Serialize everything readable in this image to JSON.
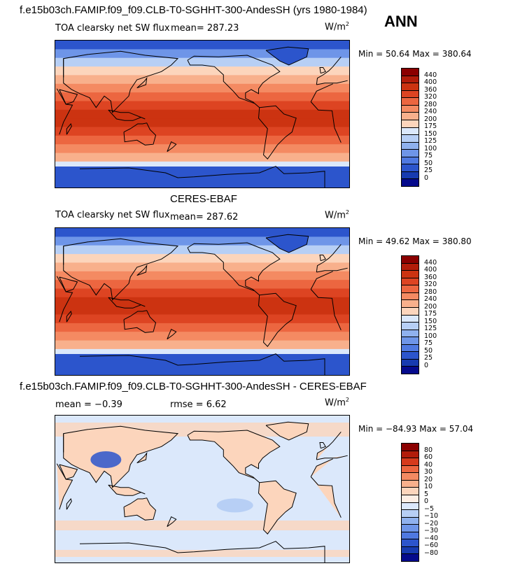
{
  "season": "ANN",
  "units": "W/m",
  "units_sup": "2",
  "panels": [
    {
      "title": "f.e15b03ch.FAMIP.f09_f09.CLB-T0-SGHHT-300-AndesSH (yrs 1980-1984)",
      "variable": "TOA clearsky net SW flux",
      "mean_label": "mean=",
      "mean": "287.23",
      "min_label": "Min =",
      "min": "50.64",
      "max_label": "Max =",
      "max": "380.64",
      "kind": "abs"
    },
    {
      "title": "CERES-EBAF",
      "variable": "TOA clearsky net SW flux",
      "mean_label": "mean=",
      "mean": "287.62",
      "min_label": "Min =",
      "min": "49.62",
      "max_label": "Max =",
      "max": "380.80",
      "kind": "abs"
    },
    {
      "title": "f.e15b03ch.FAMIP.f09_f09.CLB-T0-SGHHT-300-AndesSH - CERES-EBAF",
      "mean_label": "mean =",
      "mean": "−0.39",
      "rmse_label": "rmse =",
      "rmse": "6.62",
      "min_label": "Min =",
      "min": "−84.93",
      "max_label": "Max =",
      "max": "57.04",
      "kind": "diff"
    }
  ],
  "colorbars": {
    "abs": {
      "labels": [
        "440",
        "400",
        "360",
        "320",
        "280",
        "240",
        "200",
        "175",
        "150",
        "125",
        "100",
        "75",
        "50",
        "25",
        "0"
      ],
      "colors": [
        "#8b0000",
        "#b21c0a",
        "#cc3311",
        "#dd4422",
        "#ec6640",
        "#f48a62",
        "#f8b08c",
        "#fcd5bc",
        "#dbe8fb",
        "#b7cff5",
        "#8fb1ee",
        "#6e95e8",
        "#4f79e1",
        "#2c55cc",
        "#173bb0",
        "#050a8c"
      ]
    },
    "diff": {
      "labels": [
        "80",
        "60",
        "40",
        "30",
        "20",
        "10",
        "5",
        "0",
        "−5",
        "−10",
        "−20",
        "−30",
        "−40",
        "−60",
        "−80"
      ],
      "colors": [
        "#8b0000",
        "#b21c0a",
        "#d63a1c",
        "#ec6640",
        "#f48a62",
        "#f8b08c",
        "#fcd5bc",
        "#fdeee4",
        "#dbe8fb",
        "#b7cff5",
        "#8fb1ee",
        "#6e95e8",
        "#4f79e1",
        "#2c55cc",
        "#173bb0",
        "#050a8c"
      ]
    }
  },
  "map_colors": {
    "abs_bands": [
      "#2c55cc",
      "#6e95e8",
      "#b7cff5",
      "#fcd5bc",
      "#f8b08c",
      "#f48a62",
      "#ec6640",
      "#dd4422",
      "#cc3311",
      "#cc3311",
      "#dd4422",
      "#ec6640",
      "#f48a62",
      "#f8b08c",
      "#dbe8fb",
      "#6e95e8",
      "#2c55cc"
    ],
    "diff_base": "#dbe8fb",
    "diff_warm": "#fcd5bc",
    "diff_cool": "#b7cff5",
    "diff_strong_cool": "#2c55cc",
    "land_outline": "#000000"
  }
}
